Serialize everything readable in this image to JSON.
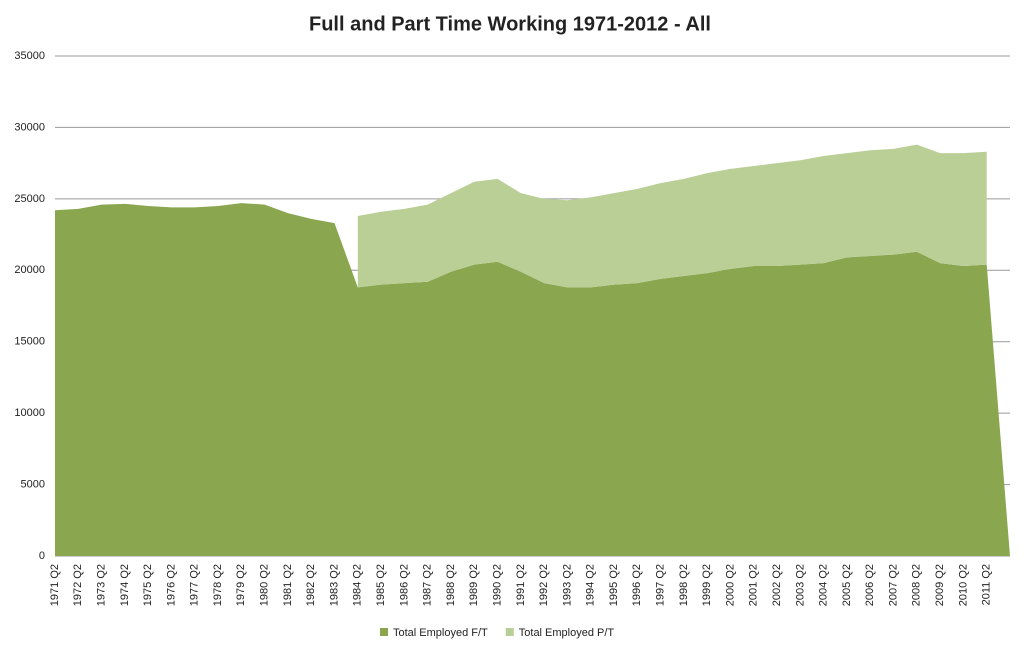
{
  "chart_data": {
    "type": "stacked-area",
    "title": "Full and Part Time Working 1971-2012 - All",
    "categories": [
      "1971 Q2",
      "1972 Q2",
      "1973 Q2",
      "1974 Q2",
      "1975 Q2",
      "1976 Q2",
      "1977 Q2",
      "1978 Q2",
      "1979 Q2",
      "1980 Q2",
      "1981 Q2",
      "1982 Q2",
      "1983 Q2",
      "1984 Q2",
      "1985 Q2",
      "1986 Q2",
      "1987 Q2",
      "1988 Q2",
      "1989 Q2",
      "1990 Q2",
      "1991 Q2",
      "1992 Q2",
      "1993 Q2",
      "1994 Q2",
      "1995 Q2",
      "1996 Q2",
      "1997 Q2",
      "1998 Q2",
      "1999 Q2",
      "2000 Q2",
      "2001 Q2",
      "2002 Q2",
      "2003 Q2",
      "2004 Q2",
      "2005 Q2",
      "2006 Q2",
      "2007 Q2",
      "2008 Q2",
      "2009 Q2",
      "2010 Q2",
      "2011 Q2",
      null
    ],
    "series": [
      {
        "name": "Total Employed F/T",
        "color": "#8aa64f",
        "values": [
          24200,
          24300,
          24600,
          24650,
          24500,
          24400,
          24400,
          24500,
          24700,
          24600,
          24000,
          23600,
          23300,
          18800,
          19000,
          19100,
          19200,
          19900,
          20400,
          20600,
          19900,
          19100,
          18800,
          18800,
          19000,
          19100,
          19400,
          19600,
          19800,
          20100,
          20300,
          20300,
          20400,
          20500,
          20900,
          21000,
          21100,
          21300,
          20500,
          20300,
          20400,
          0
        ]
      },
      {
        "name": "Total Employed P/T",
        "color": "#b9cf96",
        "values": [
          null,
          null,
          null,
          null,
          null,
          null,
          null,
          null,
          null,
          null,
          null,
          null,
          null,
          5000,
          5100,
          5200,
          5400,
          5500,
          5800,
          5800,
          5500,
          5900,
          6100,
          6300,
          6400,
          6600,
          6700,
          6800,
          7000,
          7000,
          7000,
          7200,
          7300,
          7500,
          7300,
          7400,
          7400,
          7500,
          7700,
          7900,
          7900,
          null
        ]
      }
    ],
    "ylim": [
      0,
      35000
    ],
    "yticks": [
      0,
      5000,
      10000,
      15000,
      20000,
      25000,
      30000,
      35000
    ],
    "grid": true
  }
}
